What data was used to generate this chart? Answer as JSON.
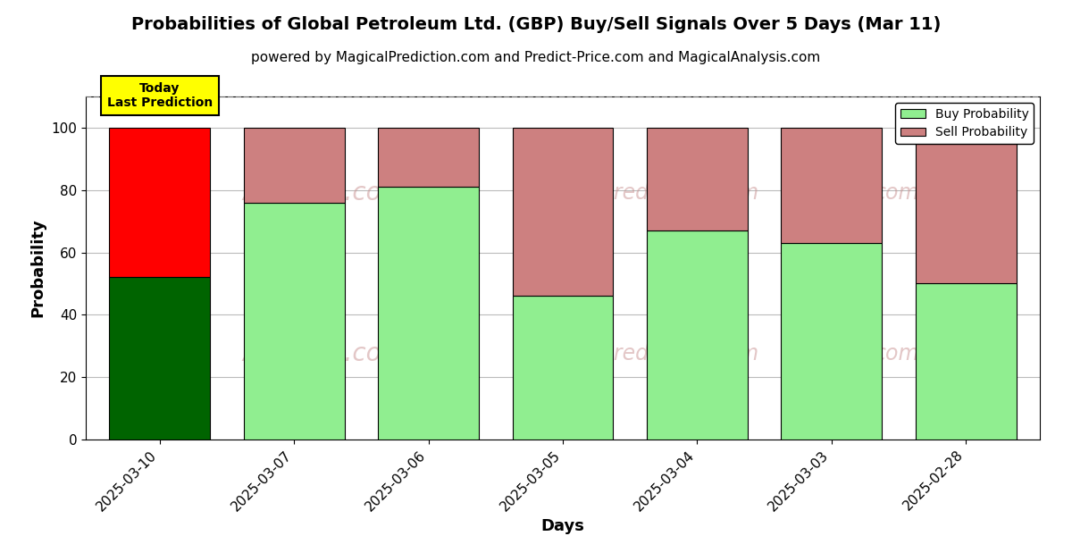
{
  "title": "Probabilities of Global Petroleum Ltd. (GBP) Buy/Sell Signals Over 5 Days (Mar 11)",
  "subtitle": "powered by MagicalPrediction.com and Predict-Price.com and MagicalAnalysis.com",
  "xlabel": "Days",
  "ylabel": "Probability",
  "categories": [
    "2025-03-10",
    "2025-03-07",
    "2025-03-06",
    "2025-03-05",
    "2025-03-04",
    "2025-03-03",
    "2025-02-28"
  ],
  "buy_values": [
    52,
    76,
    81,
    46,
    67,
    63,
    50
  ],
  "sell_values": [
    48,
    24,
    19,
    54,
    33,
    37,
    50
  ],
  "buy_colors": [
    "#006400",
    "#90EE90",
    "#90EE90",
    "#90EE90",
    "#90EE90",
    "#90EE90",
    "#90EE90"
  ],
  "sell_colors": [
    "#FF0000",
    "#CD8080",
    "#CD8080",
    "#CD8080",
    "#CD8080",
    "#CD8080",
    "#CD8080"
  ],
  "today_label": "Today\nLast Prediction",
  "today_label_bg": "#FFFF00",
  "legend_buy_label": "Buy Probability",
  "legend_sell_label": "Sell Probability",
  "legend_buy_color": "#90EE90",
  "legend_sell_color": "#CD8080",
  "ylim": [
    0,
    110
  ],
  "dashed_line_y": 110,
  "bar_width": 0.75,
  "title_fontsize": 14,
  "subtitle_fontsize": 11,
  "axis_label_fontsize": 13,
  "tick_fontsize": 11,
  "background_color": "#ffffff",
  "grid_color": "#bbbbbb"
}
